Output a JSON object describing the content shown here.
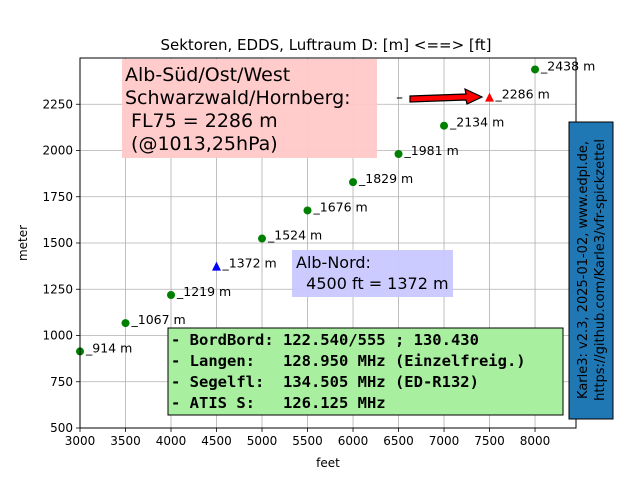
{
  "chart_data": {
    "type": "scatter",
    "title": "Sektoren, EDDS, Luftraum D: [m] <==> [ft]",
    "xlabel": "feet",
    "ylabel": "meter",
    "xlim": [
      3000,
      8450
    ],
    "ylim": [
      500,
      2500
    ],
    "x_ticks": [
      "3000",
      "3500",
      "4000",
      "4500",
      "5000",
      "5500",
      "6000",
      "6500",
      "7000",
      "7500",
      "8000"
    ],
    "y_ticks": [
      "500",
      "750",
      "1000",
      "1250",
      "1500",
      "1750",
      "2000",
      "2250"
    ],
    "grid": true,
    "points": [
      {
        "x": 3000,
        "y": 914,
        "label": "_914 m",
        "color": "#008000",
        "marker": "circle"
      },
      {
        "x": 3500,
        "y": 1067,
        "label": "_1067 m",
        "color": "#008000",
        "marker": "circle"
      },
      {
        "x": 4000,
        "y": 1219,
        "label": "_1219 m",
        "color": "#008000",
        "marker": "circle"
      },
      {
        "x": 4500,
        "y": 1372,
        "label": "_1372 m",
        "color": "#0000ff",
        "marker": "triangle"
      },
      {
        "x": 5000,
        "y": 1524,
        "label": "_1524 m",
        "color": "#008000",
        "marker": "circle"
      },
      {
        "x": 5500,
        "y": 1676,
        "label": "_1676 m",
        "color": "#008000",
        "marker": "circle"
      },
      {
        "x": 6000,
        "y": 1829,
        "label": "_1829 m",
        "color": "#008000",
        "marker": "circle"
      },
      {
        "x": 6500,
        "y": 1981,
        "label": "_1981 m",
        "color": "#008000",
        "marker": "circle"
      },
      {
        "x": 7000,
        "y": 2134,
        "label": "_2134 m",
        "color": "#008000",
        "marker": "circle"
      },
      {
        "x": 7500,
        "y": 2286,
        "label": "_2286 m",
        "color": "#ff0000",
        "marker": "triangle"
      },
      {
        "x": 8000,
        "y": 2438,
        "label": "_2438 m",
        "color": "#008000",
        "marker": "circle"
      }
    ],
    "annotations": {
      "sued": {
        "lines": [
          "Alb-Süd/Ost/West",
          "Schwarzwald/Hornberg:",
          " FL75 = 2286 m",
          " (@1013,25hPa)"
        ],
        "bg": "#ffc8c8"
      },
      "nord": {
        "lines": [
          "Alb-Nord:",
          "  4500 ft = 1372 m"
        ],
        "bg": "#c8c8ff"
      },
      "freq": {
        "lines": [
          "- BordBord: 122.540/555 ; 130.430",
          "- Langen:   128.950 MHz (Einzelfreig.)",
          "- Segelfl:  134.505 MHz (ED-R132)",
          "- ATIS S:   126.125 MHz"
        ],
        "bg": "#a8f0a0"
      },
      "arrow_tick": "–",
      "arrow_color": "#ff0000",
      "side": {
        "lines": [
          "Karle3: v2.3, 2025-01-02, www.edpl.de,",
          "https://github.com/Karle3/vfr-spickzettel"
        ],
        "bg": "#1f77b4"
      }
    }
  }
}
